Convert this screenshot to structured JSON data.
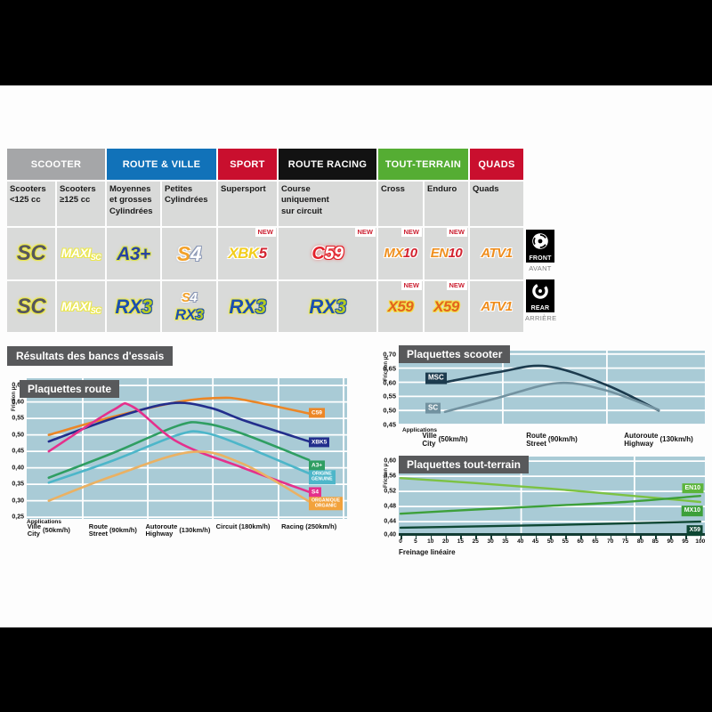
{
  "new_badge": "NEW",
  "results_title": "Résultats des bancs d'essais",
  "table": {
    "groups": [
      {
        "label": "SCOOTER",
        "color": "#a5a6a8",
        "span": 2
      },
      {
        "label": "ROUTE & VILLE",
        "color": "#1172b9",
        "span": 2
      },
      {
        "label": "SPORT",
        "color": "#c90f2e",
        "span": 1
      },
      {
        "label": "ROUTE RACING",
        "color": "#121212",
        "span": 1
      },
      {
        "label": "TOUT-TERRAIN",
        "color": "#55ad33",
        "span": 2
      },
      {
        "label": "QUADS",
        "color": "#c90f2e",
        "span": 1
      }
    ],
    "subheaders": [
      [
        "Scooters",
        "<125 cc"
      ],
      [
        "Scooters",
        "≥125 cc"
      ],
      [
        "Moyennes",
        "et grosses",
        "Cylindrées"
      ],
      [
        "Petites",
        "Cylindrées"
      ],
      [
        "Supersport"
      ],
      [
        "Course",
        "uniquement",
        "sur circuit"
      ],
      [
        "Cross"
      ],
      [
        "Enduro"
      ],
      [
        "Quads"
      ]
    ],
    "front_row": [
      {
        "parts": [
          [
            {
              "t": "SC",
              "k": "sc"
            }
          ]
        ]
      },
      {
        "parts": [
          [
            {
              "t": "MAXI",
              "k": "maxi"
            },
            {
              "t": "SC",
              "k": "maxisc"
            }
          ]
        ]
      },
      {
        "parts": [
          [
            {
              "t": "A3+",
              "k": "a3"
            }
          ]
        ]
      },
      {
        "parts": [
          [
            {
              "t": "S",
              "k": "s4s"
            },
            {
              "t": "4",
              "k": "s44"
            }
          ]
        ]
      },
      {
        "parts": [
          [
            {
              "t": "XBK",
              "k": "xbk"
            },
            {
              "t": "5",
              "k": "xbk5"
            }
          ]
        ],
        "new": true
      },
      {
        "parts": [
          [
            {
              "t": "C",
              "k": "c59c"
            },
            {
              "t": "59",
              "k": "c5959"
            }
          ]
        ],
        "new": true
      },
      {
        "parts": [
          [
            {
              "t": "MX",
              "k": "mx"
            },
            {
              "t": "10",
              "k": "n10"
            }
          ]
        ],
        "new": true
      },
      {
        "parts": [
          [
            {
              "t": "EN",
              "k": "mx"
            },
            {
              "t": "10",
              "k": "n10"
            }
          ]
        ],
        "new": true
      },
      {
        "parts": [
          [
            {
              "t": "ATV1",
              "k": "atv"
            }
          ]
        ]
      }
    ],
    "rear_row": [
      {
        "parts": [
          [
            {
              "t": "SC",
              "k": "sc"
            }
          ]
        ]
      },
      {
        "parts": [
          [
            {
              "t": "MAXI",
              "k": "maxi"
            },
            {
              "t": "SC",
              "k": "maxisc"
            }
          ]
        ]
      },
      {
        "parts": [
          [
            {
              "t": "RX",
              "k": "rx"
            },
            {
              "t": "3",
              "k": "rx3"
            }
          ]
        ]
      },
      {
        "parts": [
          [
            {
              "t": "S",
              "k": "s4s-sm"
            },
            {
              "t": "4",
              "k": "s44-sm"
            }
          ],
          [
            {
              "t": "RX",
              "k": "rx-sm"
            },
            {
              "t": "3",
              "k": "rx3-sm"
            }
          ]
        ]
      },
      {
        "parts": [
          [
            {
              "t": "RX",
              "k": "rx"
            },
            {
              "t": "3",
              "k": "rx3"
            }
          ]
        ]
      },
      {
        "parts": [
          [
            {
              "t": "RX",
              "k": "rx"
            },
            {
              "t": "3",
              "k": "rx3"
            }
          ]
        ]
      },
      {
        "parts": [
          [
            {
              "t": "X59",
              "k": "x59"
            }
          ]
        ],
        "new": true
      },
      {
        "parts": [
          [
            {
              "t": "X59",
              "k": "x59"
            }
          ]
        ],
        "new": true
      },
      {
        "parts": [
          [
            {
              "t": "ATV1",
              "k": "atv"
            }
          ]
        ]
      }
    ],
    "side": {
      "front_en": "FRONT",
      "front_fr": "AVANT",
      "rear_en": "REAR",
      "rear_fr": "ARRIÈRE"
    }
  },
  "chart_data": [
    {
      "id": "route",
      "type": "line",
      "title": "Plaquettes route",
      "ylabel": "Friction μ",
      "xcaption": "Applications",
      "ylim": [
        0.25,
        0.65
      ],
      "yticks": [
        "0,65",
        "0,60",
        "0,55",
        "0,50",
        "0,45",
        "0,40",
        "0,35",
        "0,30",
        "0,25"
      ],
      "categories": [
        {
          "fr": "Ville",
          "en": "City",
          "speed": "(50km/h)"
        },
        {
          "fr": "Route",
          "en": "Street",
          "speed": "(90km/h)"
        },
        {
          "fr": "Autoroute",
          "en": "Highway",
          "speed": "(130km/h)"
        },
        {
          "fr": "Circuit",
          "speed": "(180km/h)"
        },
        {
          "fr": "Racing",
          "speed": "(250km/h)"
        }
      ],
      "series": [
        {
          "name": "C59",
          "color": "#ec8626",
          "label_lines": [
            "C59"
          ],
          "points": [
            [
              0,
              0.5
            ],
            [
              1,
              0.555
            ],
            [
              2,
              0.6
            ],
            [
              2.6,
              0.612
            ],
            [
              3,
              0.607
            ],
            [
              4,
              0.565
            ]
          ]
        },
        {
          "name": "XBK5",
          "color": "#222e8c",
          "label_lines": [
            "XBK5"
          ],
          "points": [
            [
              0,
              0.48
            ],
            [
              1,
              0.55
            ],
            [
              1.9,
              0.596
            ],
            [
              2.5,
              0.582
            ],
            [
              3,
              0.545
            ],
            [
              4,
              0.48
            ]
          ]
        },
        {
          "name": "A3+",
          "color": "#2f9e62",
          "label_lines": [
            "A3+"
          ],
          "points": [
            [
              0,
              0.37
            ],
            [
              1,
              0.445
            ],
            [
              2,
              0.528
            ],
            [
              2.4,
              0.535
            ],
            [
              3,
              0.503
            ],
            [
              4,
              0.424
            ]
          ]
        },
        {
          "name": "ORIGINE / GENUINE",
          "color": "#4db6c9",
          "label_lines": [
            "ORIGINE",
            "GENUINE"
          ],
          "points": [
            [
              0,
              0.355
            ],
            [
              1,
              0.422
            ],
            [
              2,
              0.5
            ],
            [
              2.4,
              0.507
            ],
            [
              3,
              0.467
            ],
            [
              4,
              0.383
            ]
          ]
        },
        {
          "name": "S4",
          "color": "#e4308c",
          "label_lines": [
            "S4"
          ],
          "points": [
            [
              0,
              0.45
            ],
            [
              1,
              0.575
            ],
            [
              1.3,
              0.586
            ],
            [
              2,
              0.478
            ],
            [
              3,
              0.4
            ],
            [
              4,
              0.327
            ]
          ]
        },
        {
          "name": "ORGANIQUE / ORGANIC",
          "color": "#eab163",
          "box": "#f2a23c",
          "label_lines": [
            "ORGANIQUE",
            "ORGANIC"
          ],
          "points": [
            [
              0,
              0.3
            ],
            [
              1,
              0.375
            ],
            [
              2.2,
              0.448
            ],
            [
              3,
              0.412
            ],
            [
              4,
              0.298
            ]
          ]
        }
      ]
    },
    {
      "id": "scooter",
      "type": "line",
      "title": "Plaquettes scooter",
      "ylabel": "Friction μ",
      "xcaption": "Applications",
      "ylim": [
        0.45,
        0.7
      ],
      "yticks": [
        "0,70",
        "0,65",
        "0,60",
        "0,55",
        "0,50",
        "0,45"
      ],
      "categories": [
        {
          "fr": "Ville",
          "en": "City",
          "speed": "(50km/h)"
        },
        {
          "fr": "Route",
          "en": "Street",
          "speed": "(90km/h)"
        },
        {
          "fr": "Autoroute",
          "en": "Highway",
          "speed": "(130km/h)"
        }
      ],
      "series": [
        {
          "name": "MSC",
          "color": "#1c3b4e",
          "label_lines": [
            "MSC"
          ],
          "points": [
            [
              0,
              0.6
            ],
            [
              0.5,
              0.636
            ],
            [
              0.95,
              0.657
            ],
            [
              1.5,
              0.592
            ],
            [
              2,
              0.5
            ]
          ]
        },
        {
          "name": "SC",
          "color": "#7292a0",
          "label_lines": [
            "SC"
          ],
          "points": [
            [
              0,
              0.495
            ],
            [
              0.5,
              0.545
            ],
            [
              1.05,
              0.597
            ],
            [
              1.5,
              0.572
            ],
            [
              2,
              0.502
            ]
          ]
        }
      ]
    },
    {
      "id": "tt",
      "type": "line",
      "title": "Plaquettes tout-terrain",
      "ylabel": "Friction μ",
      "xlabel": "Freinage linéaire",
      "ylim": [
        0.4,
        0.6
      ],
      "yticks": [
        "0,60",
        "0,56",
        "0,52",
        "0,48",
        "0,44",
        "0,40"
      ],
      "xticks": [
        "0",
        "5",
        "10",
        "20",
        "15",
        "25",
        "30",
        "35",
        "40",
        "45",
        "50",
        "55",
        "60",
        "65",
        "70",
        "75",
        "80",
        "85",
        "90",
        "95",
        "100"
      ],
      "series": [
        {
          "name": "EN10",
          "color": "#7cc243",
          "box": "#5cb53c",
          "label_lines": [
            "EN10"
          ],
          "points": [
            [
              0,
              0.555
            ],
            [
              25,
              0.542
            ],
            [
              50,
              0.527
            ],
            [
              75,
              0.51
            ],
            [
              100,
              0.492
            ]
          ]
        },
        {
          "name": "MX10",
          "color": "#3da03a",
          "label_lines": [
            "MX10"
          ],
          "points": [
            [
              0,
              0.461
            ],
            [
              25,
              0.472
            ],
            [
              50,
              0.482
            ],
            [
              75,
              0.492
            ],
            [
              100,
              0.508
            ]
          ]
        },
        {
          "name": "X59",
          "color": "#0e4733",
          "label_lines": [
            "X59"
          ],
          "points": [
            [
              0,
              0.424
            ],
            [
              50,
              0.431
            ],
            [
              100,
              0.44
            ]
          ]
        }
      ]
    }
  ]
}
